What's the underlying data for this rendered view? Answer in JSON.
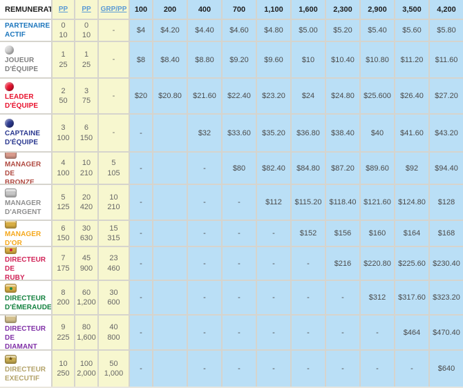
{
  "table": {
    "header": {
      "remuneration_label": "REMUNERATION",
      "pp1_label": "PP",
      "pp2_label": "PP",
      "grp_label": "GRP/PP",
      "volume_columns": [
        "100",
        "200",
        "400",
        "700",
        "1,100",
        "1,600",
        "2,300",
        "2,900",
        "3,500",
        "4,200"
      ]
    },
    "colors": {
      "yellow_cell": "#f7f7cf",
      "blue_cell": "#badff6",
      "link_blue": "#5b9bd5",
      "grid_gap": "#d6d4cd"
    },
    "rows": [
      {
        "name": "PARTENAIRE\nACTIF",
        "name_color": "#1b75bc",
        "icon": null,
        "pp1": "0\n10",
        "pp2": "0\n10",
        "grp": "-",
        "values": [
          "$4",
          "$4.20",
          "$4.40",
          "$4.60",
          "$4.80",
          "$5.00",
          "$5.20",
          "$5.40",
          "$5.60",
          "$5.80"
        ]
      },
      {
        "name": "JOUEUR\nD'ÉQUIPE",
        "name_color": "#7f7f7f",
        "icon": {
          "shape": "sphere",
          "color": "#cdcdcd"
        },
        "pp1": "1\n25",
        "pp2": "1\n25",
        "grp": "-",
        "values": [
          "$8",
          "$8.40",
          "$8.80",
          "$9.20",
          "$9.60",
          "$10",
          "$10.40",
          "$10.80",
          "$11.20",
          "$11.60"
        ]
      },
      {
        "name": "LEADER\nD'ÉQUIPE",
        "name_color": "#e8112d",
        "icon": {
          "shape": "sphere",
          "color": "#e8112d"
        },
        "pp1": "2\n50",
        "pp2": "3\n75",
        "grp": "-",
        "values": [
          "$20",
          "$20.80",
          "$21.60",
          "$22.40",
          "$23.20",
          "$24",
          "$24.80",
          "$25.600",
          "$26.40",
          "$27.20"
        ]
      },
      {
        "name": "CAPTAINE\nD'ÉQUIPE",
        "name_color": "#2b3990",
        "icon": {
          "shape": "sphere",
          "color": "#2b3990"
        },
        "pp1": "3\n100",
        "pp2": "6\n150",
        "grp": "-",
        "values": [
          "-",
          "",
          "$32",
          "$33.60",
          "$35.20",
          "$36.80",
          "$38.40",
          "$40",
          "$41.60",
          "$43.20"
        ]
      },
      {
        "name": "MANAGER DE\nBRONZE",
        "name_color": "#b04a41",
        "icon": {
          "shape": "chest",
          "color": "#d99b8c"
        },
        "pp1": "4\n100",
        "pp2": "10\n210",
        "grp": "5\n105",
        "values": [
          "-",
          "",
          "-",
          "$80",
          "$82.40",
          "$84.80",
          "$87.20",
          "$89.60",
          "$92",
          "$94.40"
        ]
      },
      {
        "name": "MANAGER\nD'ARGENT",
        "name_color": "#8f8f8f",
        "icon": {
          "shape": "chest",
          "color": "#c6c6c6"
        },
        "pp1": "5\n125",
        "pp2": "20\n420",
        "grp": "10\n210",
        "values": [
          "-",
          "",
          "-",
          "-",
          "$112",
          "$115.20",
          "$118.40",
          "$121.60",
          "$124.80",
          "$128"
        ]
      },
      {
        "name": "MANAGER D'OR",
        "name_color": "#f5a81c",
        "icon": {
          "shape": "chest",
          "color": "#d8ae44"
        },
        "pp1": "6\n150",
        "pp2": "30\n630",
        "grp": "15\n315",
        "values": [
          "-",
          "",
          "-",
          "-",
          "-",
          "$152",
          "$156",
          "$160",
          "$164",
          "$168"
        ]
      },
      {
        "name": "DIRECTEUR DE\nRUBY",
        "name_color": "#d12257",
        "icon": {
          "shape": "chest",
          "color": "#d8ae44",
          "gem": "#cc1f3f"
        },
        "pp1": "7\n175",
        "pp2": "45\n900",
        "grp": "23\n460",
        "values": [
          "-",
          "",
          "-",
          "-",
          "-",
          "-",
          "$216",
          "$220.80",
          "$225.60",
          "$230.40"
        ]
      },
      {
        "name": "DIRECTEUR\nD'ÉMERAUDE",
        "name_color": "#13813f",
        "icon": {
          "shape": "chest",
          "color": "#d8ae44",
          "gem": "#1e8a4e"
        },
        "pp1": "8\n200",
        "pp2": "60\n1,200",
        "grp": "30\n600",
        "values": [
          "-",
          "",
          "-",
          "-",
          "-",
          "-",
          "-",
          "$312",
          "$317.60",
          "$323.20"
        ]
      },
      {
        "name": "DIRECTEUR DE\nDIAMANT",
        "name_color": "#8031a7",
        "icon": {
          "shape": "chest",
          "color": "#d3c08e"
        },
        "pp1": "9\n225",
        "pp2": "80\n1,600",
        "grp": "40\n800",
        "values": [
          "-",
          "",
          "-",
          "-",
          "-",
          "-",
          "-",
          "-",
          "$464",
          "$470.40"
        ]
      },
      {
        "name": "DIRECTEUR\nEXECUTIF",
        "name_color": "#b3a268",
        "icon": {
          "shape": "chest",
          "color": "#c9ad52",
          "star": true
        },
        "pp1": "10\n250",
        "pp2": "100\n2,000",
        "grp": "50\n1,000",
        "values": [
          "-",
          "",
          "-",
          "-",
          "-",
          "-",
          "-",
          "-",
          "-",
          "$640"
        ]
      }
    ]
  }
}
